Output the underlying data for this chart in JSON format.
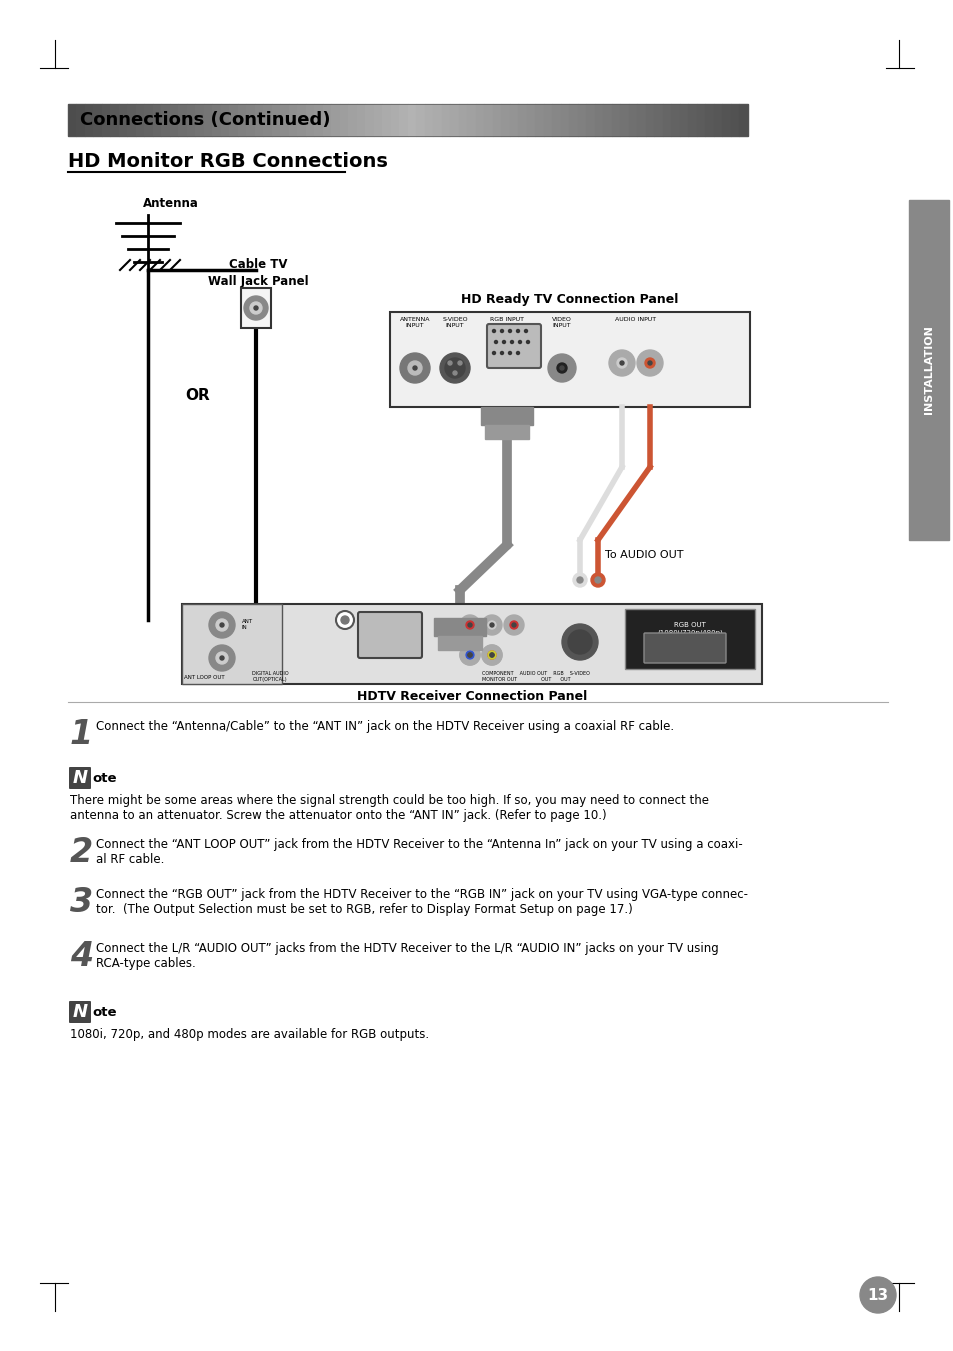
{
  "page_bg": "#ffffff",
  "header_text": "Connections (Continued)",
  "section_title": "HD Monitor RGB Connections",
  "sidebar_text": "INSTALLATION",
  "page_number": "13",
  "step1_text": "Connect the “Antenna/Cable” to the “ANT IN” jack on the HDTV Receiver using a coaxial RF cable.",
  "note1_text": "There might be some areas where the signal strength could be too high. If so, you may need to connect the\nantenna to an attenuator. Screw the attenuator onto the “ANT IN” jack. (Refer to page 10.)",
  "step2_text": "Connect the “ANT LOOP OUT” jack from the HDTV Receiver to the “Antenna In” jack on your TV using a coaxi-\nal RF cable.",
  "step3_text": "Connect the “RGB OUT” jack from the HDTV Receiver to the “RGB IN” jack on your TV using VGA-type connec-\ntor.  (The Output Selection must be set to RGB, refer to Display Format Setup on page 17.)",
  "step4_text": "Connect the L/R “AUDIO OUT” jacks from the HDTV Receiver to the L/R “AUDIO IN” jacks on your TV using\nRCA-type cables.",
  "note2_text": "1080i, 720p, and 480p modes are available for RGB outputs.",
  "diagram_label_antenna": "Antenna",
  "diagram_label_cabletv": "Cable TV\nWall Jack Panel",
  "diagram_label_or": "OR",
  "diagram_label_hdready": "HD Ready TV Connection Panel",
  "diagram_label_hdtv": "HDTV Receiver Connection Panel",
  "diagram_label_audio_out": "To AUDIO OUT"
}
